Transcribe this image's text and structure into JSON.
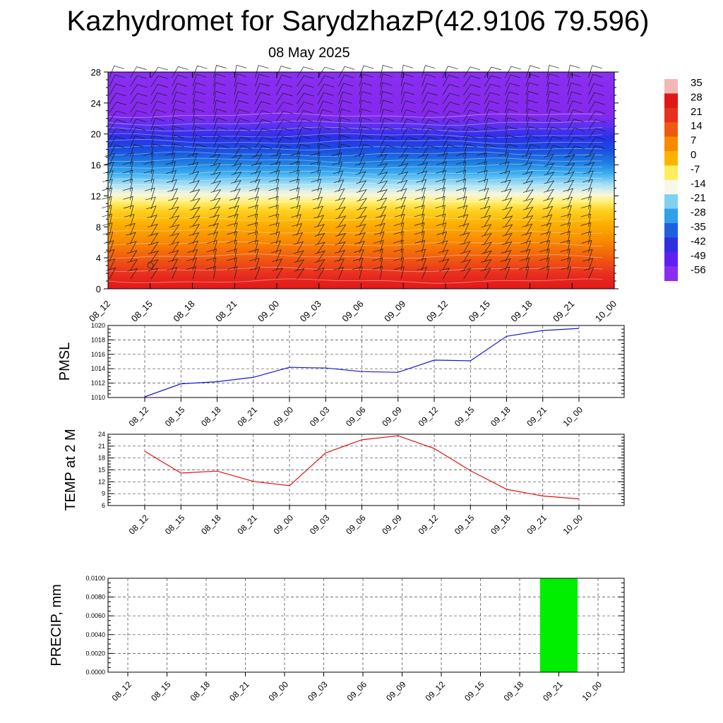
{
  "title": "Kazhydromet for SarydzhazP(42.9106 79.596)",
  "subtitle": "08 May 2025",
  "time_labels": [
    "08_12",
    "08_15",
    "08_18",
    "08_21",
    "09_00",
    "09_03",
    "09_06",
    "09_09",
    "09_12",
    "09_15",
    "09_18",
    "09_21",
    "10_00"
  ],
  "chart_data": [
    {
      "type": "heatmap",
      "title": "",
      "xlabel": "",
      "ylabel": "",
      "y_ticks": [
        0,
        4,
        8,
        12,
        16,
        20,
        24,
        28
      ],
      "ylim": [
        0,
        28
      ],
      "colorbar": {
        "labels": [
          "35",
          "28",
          "21",
          "14",
          "7",
          "0",
          "-7",
          "-14",
          "-21",
          "-28",
          "-35",
          "-42",
          "-49",
          "-56"
        ],
        "colors": [
          "#f4b6b6",
          "#e01818",
          "#e83020",
          "#f05a10",
          "#f88a00",
          "#fdb400",
          "#ffee60",
          "#f8f8e8",
          "#80d0f0",
          "#30a0e8",
          "#2060e0",
          "#3030e0",
          "#6020f0",
          "#8c2ef0"
        ]
      },
      "description_layers": [
        "filled temperature contours",
        "wind barbs"
      ]
    },
    {
      "type": "line",
      "ylabel": "PMSL",
      "categories": [
        "08_12",
        "08_15",
        "08_18",
        "08_21",
        "09_00",
        "09_03",
        "09_06",
        "09_09",
        "09_12",
        "09_15",
        "09_18",
        "09_21",
        "10_00"
      ],
      "values": [
        1010.1,
        1011.9,
        1012.2,
        1012.8,
        1014.2,
        1014.1,
        1013.6,
        1013.5,
        1015.2,
        1015.1,
        1018.5,
        1019.3,
        1019.6
      ],
      "ylim": [
        1010,
        1020
      ],
      "y_ticks": [
        "1010",
        "1012",
        "1014",
        "1016",
        "1018",
        "1020"
      ],
      "color": "#1a1acc",
      "grid": true
    },
    {
      "type": "line",
      "ylabel": "TEMP at 2 M",
      "categories": [
        "08_12",
        "08_15",
        "08_18",
        "08_21",
        "09_00",
        "09_03",
        "09_06",
        "09_09",
        "09_12",
        "09_15",
        "09_18",
        "09_21",
        "10_00"
      ],
      "values": [
        19.7,
        14.2,
        14.7,
        12.1,
        11.0,
        19.3,
        22.6,
        23.6,
        20.4,
        14.8,
        10.1,
        8.4,
        7.7
      ],
      "ylim": [
        6,
        24
      ],
      "y_ticks": [
        "6",
        "9",
        "12",
        "15",
        "18",
        "21",
        "24"
      ],
      "color": "#e01010",
      "grid": true
    },
    {
      "type": "bar",
      "ylabel": "PRECIP, mm",
      "categories": [
        "08_12",
        "08_15",
        "08_18",
        "08_21",
        "09_00",
        "09_03",
        "09_06",
        "09_09",
        "09_12",
        "09_15",
        "09_18",
        "09_21",
        "10_00"
      ],
      "values": [
        0,
        0,
        0,
        0,
        0,
        0,
        0,
        0,
        0,
        0,
        0,
        0.01,
        0
      ],
      "ylim": [
        0,
        0.01
      ],
      "y_ticks": [
        "0.0000",
        "0.0020",
        "0.0040",
        "0.0060",
        "0.0080",
        "0.0100"
      ],
      "color": "#00ee00",
      "grid": true
    }
  ]
}
